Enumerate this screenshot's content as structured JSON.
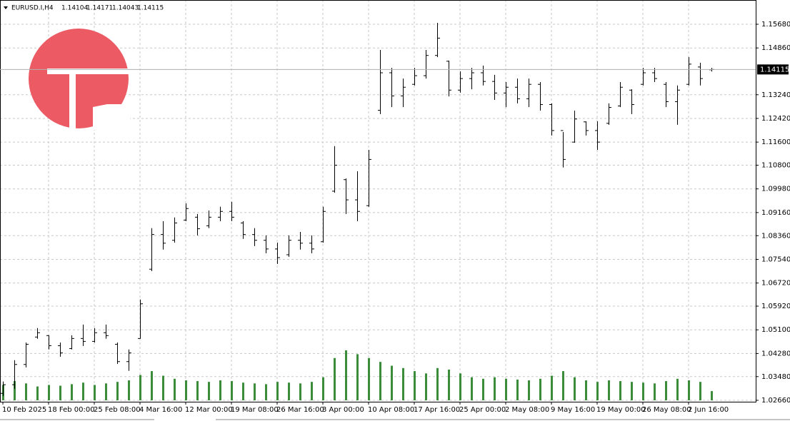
{
  "chart_data": {
    "type": "ohlc",
    "symbol": "EURUSD.I,H4",
    "categories": [
      "10 Feb 2025",
      null,
      null,
      null,
      "18 Feb 00:00",
      null,
      null,
      null,
      "25 Feb 08:00",
      null,
      null,
      null,
      "4 Mar 16:00",
      null,
      null,
      null,
      "12 Mar 00:00",
      null,
      null,
      null,
      "19 Mar 08:00",
      null,
      null,
      null,
      "26 Mar 16:00",
      null,
      null,
      null,
      "3 Apr 00:00",
      null,
      null,
      null,
      "10 Apr 08:00",
      null,
      null,
      null,
      "17 Apr 16:00",
      null,
      null,
      null,
      "25 Apr 00:00",
      null,
      null,
      null,
      "2 May 08:00",
      null,
      null,
      null,
      "9 May 16:00",
      null,
      null,
      null,
      "19 May 00:00",
      null,
      null,
      null,
      "26 May 08:00",
      null,
      null,
      null,
      "2 Jun 16:00",
      null,
      null
    ],
    "open": [
      1.029,
      1.032,
      1.039,
      1.0485,
      1.049,
      1.0455,
      1.0445,
      1.048,
      1.047,
      1.05,
      1.046,
      1.04,
      1.048,
      1.072,
      1.084,
      1.082,
      1.089,
      1.09,
      1.087,
      1.09,
      1.092,
      1.088,
      1.084,
      1.082,
      1.079,
      1.077,
      1.082,
      1.081,
      1.0815,
      1.099,
      1.103,
      1.096,
      1.094,
      1.127,
      1.14,
      1.132,
      1.136,
      1.139,
      1.146,
      1.144,
      1.134,
      1.138,
      1.14,
      1.137,
      1.133,
      1.135,
      1.131,
      1.136,
      1.129,
      1.12,
      1.116,
      1.123,
      1.12,
      1.1225,
      1.1285,
      1.134,
      1.136,
      1.14,
      1.136,
      1.13,
      1.136,
      1.142,
      1.14104
    ],
    "high": [
      1.0331,
      1.0405,
      1.0466,
      1.0516,
      1.0491,
      1.0466,
      1.0491,
      1.0528,
      1.0516,
      1.0528,
      1.0466,
      1.0442,
      1.0615,
      1.0862,
      1.0886,
      1.0899,
      1.0948,
      1.0911,
      1.0923,
      1.0936,
      1.0953,
      1.0886,
      1.0862,
      1.0837,
      1.0812,
      1.0837,
      1.0849,
      1.0837,
      1.0936,
      1.1146,
      1.1034,
      1.1059,
      1.1133,
      1.1479,
      1.1417,
      1.138,
      1.1417,
      1.1479,
      1.1573,
      1.1442,
      1.1405,
      1.1417,
      1.1425,
      1.1393,
      1.1368,
      1.138,
      1.138,
      1.1368,
      1.1294,
      1.1195,
      1.1269,
      1.1232,
      1.1232,
      1.1294,
      1.1368,
      1.1343,
      1.1417,
      1.1417,
      1.1368,
      1.1356,
      1.1454,
      1.1435,
      1.14171
    ],
    "low": [
      1.0281,
      1.0306,
      1.038,
      1.0479,
      1.0442,
      1.0417,
      1.0442,
      1.0454,
      1.0466,
      1.0479,
      1.0392,
      1.0368,
      1.0479,
      1.0713,
      1.0788,
      1.0812,
      1.0886,
      1.0837,
      1.0862,
      1.0886,
      1.0886,
      1.0825,
      1.08,
      1.0775,
      1.0738,
      1.0763,
      1.0788,
      1.0775,
      1.0812,
      1.0985,
      1.0911,
      1.0886,
      1.0936,
      1.1257,
      1.1281,
      1.1281,
      1.1356,
      1.138,
      1.1454,
      1.1318,
      1.1331,
      1.1343,
      1.1356,
      1.1306,
      1.1281,
      1.1294,
      1.1281,
      1.1269,
      1.1183,
      1.1072,
      1.1158,
      1.1183,
      1.1133,
      1.122,
      1.1281,
      1.1257,
      1.1356,
      1.1368,
      1.1281,
      1.122,
      1.1356,
      1.1356,
      1.14043
    ],
    "close": [
      1.032,
      1.039,
      1.046,
      1.05,
      1.0455,
      1.043,
      1.048,
      1.047,
      1.05,
      1.049,
      1.04,
      1.043,
      1.06,
      1.084,
      1.081,
      1.088,
      1.093,
      1.086,
      1.09,
      1.092,
      1.09,
      1.084,
      1.082,
      1.079,
      1.076,
      1.082,
      1.081,
      1.079,
      1.092,
      1.108,
      1.096,
      1.092,
      1.11,
      1.14,
      1.132,
      1.135,
      1.139,
      1.146,
      1.152,
      1.134,
      1.138,
      1.14,
      1.137,
      1.133,
      1.135,
      1.131,
      1.136,
      1.129,
      1.12,
      1.11,
      1.124,
      1.12,
      1.116,
      1.128,
      1.135,
      1.129,
      1.14,
      1.138,
      1.13,
      1.134,
      1.143,
      1.138,
      1.14115
    ],
    "volume": [
      2000,
      2500,
      2200,
      1800,
      2000,
      1900,
      2100,
      2300,
      2000,
      2200,
      2400,
      2600,
      3300,
      3800,
      3200,
      2800,
      2600,
      2500,
      2400,
      2600,
      2500,
      2300,
      2200,
      2100,
      2400,
      2300,
      2200,
      2400,
      3000,
      5500,
      6500,
      6000,
      5500,
      5000,
      4500,
      4200,
      3800,
      3500,
      4200,
      4000,
      3500,
      3000,
      2800,
      3000,
      2800,
      2700,
      2600,
      2800,
      3200,
      3800,
      3000,
      2600,
      2400,
      2600,
      2500,
      2400,
      2300,
      2200,
      2500,
      2800,
      2600,
      2400,
      1200
    ],
    "bar_color": "#000000",
    "volume_color": "#3b8c3b",
    "ylim": [
      1.0261,
      1.1652
    ],
    "yticks": [
      {
        "value": 1.0266,
        "label": "1.02660"
      },
      {
        "value": 1.0348,
        "label": "1.03480"
      },
      {
        "value": 1.0428,
        "label": "1.04280"
      },
      {
        "value": 1.051,
        "label": "1.05100"
      },
      {
        "value": 1.0592,
        "label": "1.05920"
      },
      {
        "value": 1.0672,
        "label": "1.06720"
      },
      {
        "value": 1.0754,
        "label": "1.07540"
      },
      {
        "value": 1.0836,
        "label": "1.08360"
      },
      {
        "value": 1.0916,
        "label": "1.09160"
      },
      {
        "value": 1.0998,
        "label": "1.09980"
      },
      {
        "value": 1.108,
        "label": "1.10800"
      },
      {
        "value": 1.116,
        "label": "1.11600"
      },
      {
        "value": 1.1242,
        "label": "1.12420"
      },
      {
        "value": 1.1324,
        "label": "1.13240"
      },
      {
        "value": 1.1486,
        "label": "1.14860"
      },
      {
        "value": 1.1568,
        "label": "1.15680"
      }
    ],
    "grid": true
  }
}
